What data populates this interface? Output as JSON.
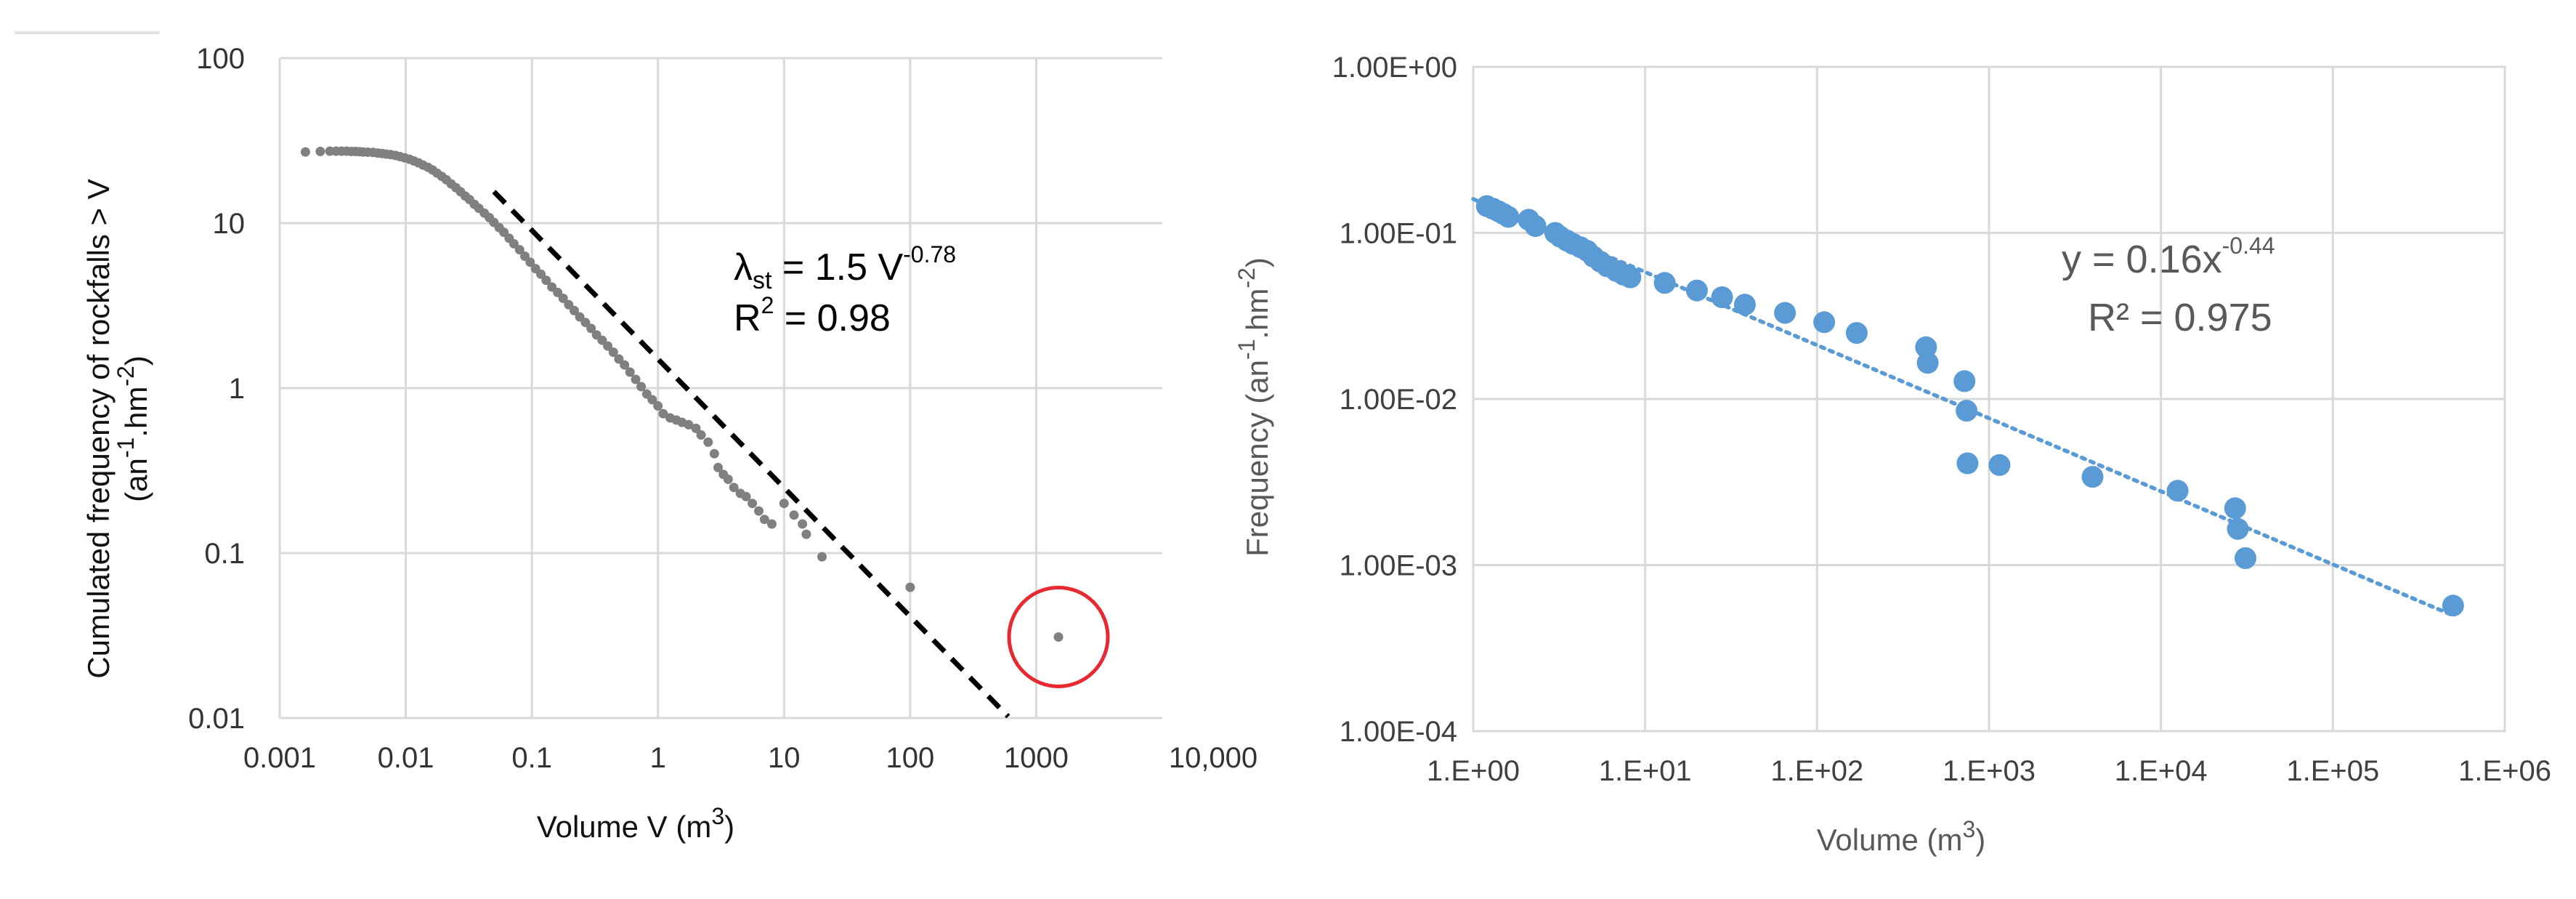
{
  "chart_data": [
    {
      "type": "scatter",
      "title": "",
      "xlabel": "Volume V (m",
      "xlabel_sup": "3",
      "xlabel_end": ")",
      "ylabel_line1": "Cumulated frequency of rockfalls > V",
      "ylabel_line2_pre": "(an",
      "ylabel_line2_sup1": "-1",
      "ylabel_line2_mid": ".hm",
      "ylabel_line2_sup2": "-2",
      "ylabel_line2_end": ")",
      "xscale": "log",
      "yscale": "log",
      "xlim": [
        0.001,
        10000
      ],
      "ylim": [
        0.01,
        100
      ],
      "grid": true,
      "xticks": [
        0.001,
        0.01,
        0.1,
        1,
        10,
        100,
        1000,
        10000
      ],
      "xtick_labels": [
        "0.001",
        "0.01",
        "0.1",
        "1",
        "10",
        "100",
        "1000",
        "10,000"
      ],
      "yticks": [
        0.01,
        0.1,
        1,
        10,
        100
      ],
      "ytick_labels": [
        "0.01",
        "0.1",
        "1",
        "10",
        "100"
      ],
      "equation": {
        "lambda": "λ",
        "sub": "st",
        "mid": " = 1.5 V",
        "sup": "-0.78",
        "r2_pre": "R",
        "r2_sup": "2",
        "r2_post": " = 0.98"
      },
      "fit": {
        "style": "dashed",
        "color": "#000000",
        "a": 1.5,
        "b": -0.78,
        "x_range": [
          0.05,
          600
        ]
      },
      "series_color": "#808080",
      "series": [
        {
          "x": [
            0.0016,
            0.0021,
            0.0025,
            0.0028,
            0.0031,
            0.0034,
            0.0037,
            0.004,
            0.0043,
            0.0046,
            0.005,
            0.0055,
            0.006,
            0.0065,
            0.007,
            0.0076,
            0.0083,
            0.009,
            0.0098,
            0.0107,
            0.0116,
            0.0126,
            0.0137,
            0.015,
            0.0163,
            0.0177,
            0.0193,
            0.021,
            0.0229,
            0.025,
            0.0272,
            0.0296,
            0.032,
            0.035,
            0.038,
            0.042,
            0.046,
            0.05,
            0.055,
            0.06,
            0.066,
            0.072,
            0.08,
            0.088,
            0.097,
            0.107,
            0.118,
            0.13,
            0.144,
            0.16,
            0.177,
            0.196,
            0.217,
            0.24,
            0.266,
            0.295,
            0.326,
            0.361,
            0.4,
            0.443,
            0.49,
            0.543,
            0.6,
            0.665,
            0.736,
            0.815,
            0.9,
            1.0,
            1.1,
            1.25,
            1.4,
            1.55,
            1.75,
            2.0,
            2.2,
            2.5,
            2.8,
            3.0,
            3.3,
            3.6,
            4.0,
            4.5,
            5.0,
            5.6,
            6.3,
            7.0,
            8.0,
            10.0,
            12.0,
            14.0,
            15.0,
            20.0,
            100.0,
            1500.0
          ],
          "y": [
            27.0,
            27.2,
            27.3,
            27.3,
            27.3,
            27.3,
            27.2,
            27.2,
            27.1,
            27.0,
            26.9,
            26.8,
            26.6,
            26.4,
            26.2,
            26.0,
            25.7,
            25.3,
            24.9,
            24.4,
            23.8,
            23.2,
            22.5,
            21.8,
            21.0,
            20.1,
            19.2,
            18.3,
            17.3,
            16.4,
            15.5,
            14.6,
            13.9,
            13.0,
            12.3,
            11.5,
            10.8,
            10.1,
            9.4,
            8.8,
            8.1,
            7.5,
            6.9,
            6.3,
            5.8,
            5.3,
            4.9,
            4.5,
            4.1,
            3.8,
            3.5,
            3.2,
            2.95,
            2.7,
            2.5,
            2.3,
            2.1,
            1.95,
            1.8,
            1.65,
            1.5,
            1.38,
            1.25,
            1.13,
            1.02,
            0.92,
            0.85,
            0.78,
            0.7,
            0.66,
            0.64,
            0.62,
            0.6,
            0.57,
            0.52,
            0.47,
            0.4,
            0.33,
            0.3,
            0.28,
            0.25,
            0.23,
            0.22,
            0.2,
            0.18,
            0.16,
            0.15,
            0.2,
            0.17,
            0.15,
            0.13,
            0.095,
            0.062,
            0.031
          ]
        }
      ],
      "highlight": {
        "shape": "circle",
        "color": "#e8292f",
        "x": 1500,
        "y": 0.031
      }
    },
    {
      "type": "scatter",
      "title": "",
      "xlabel": "Volume (m",
      "xlabel_sup": "3",
      "xlabel_end": ")",
      "ylabel_pre": "Frequency (an",
      "ylabel_sup1": "-1",
      "ylabel_mid": ".hm",
      "ylabel_sup2": "-2",
      "ylabel_end": ")",
      "xscale": "log",
      "yscale": "log",
      "xlim": [
        1,
        1000000
      ],
      "ylim": [
        0.0001,
        1
      ],
      "grid": true,
      "xticks": [
        1,
        10,
        100,
        1000,
        10000,
        100000,
        1000000
      ],
      "xtick_labels": [
        "1.E+00",
        "1.E+01",
        "1.E+02",
        "1.E+03",
        "1.E+04",
        "1.E+05",
        "1.E+06"
      ],
      "yticks": [
        0.0001,
        0.001,
        0.01,
        0.1,
        1
      ],
      "ytick_labels": [
        "1.00E-04",
        "1.00E-03",
        "1.00E-02",
        "1.00E-01",
        "1.00E+00"
      ],
      "equation": {
        "pre": "y = 0.16x",
        "sup": "-0.44",
        "r2_pre": "R",
        "r2_sup": "²",
        "r2_post": " = 0.975"
      },
      "fit": {
        "style": "dotted",
        "color": "#5b9bd5",
        "a": 0.16,
        "b": -0.44,
        "x_range": [
          1,
          500000
        ]
      },
      "series_color": "#5b9bd5",
      "series": [
        {
          "x": [
            1.2,
            1.3,
            1.4,
            1.5,
            1.6,
            2.1,
            2.3,
            3.0,
            3.2,
            3.5,
            3.8,
            4.2,
            4.6,
            5.0,
            5.5,
            6.0,
            6.8,
            7.5,
            8.2,
            13,
            20,
            28,
            38,
            65,
            110,
            170,
            430,
            440,
            720,
            740,
            750,
            1150,
            4000,
            12500,
            27000,
            28000,
            31000,
            500000
          ],
          "y": [
            0.145,
            0.14,
            0.135,
            0.13,
            0.125,
            0.12,
            0.11,
            0.1,
            0.095,
            0.09,
            0.086,
            0.082,
            0.078,
            0.072,
            0.067,
            0.063,
            0.059,
            0.056,
            0.054,
            0.05,
            0.045,
            0.041,
            0.037,
            0.033,
            0.029,
            0.025,
            0.0205,
            0.0165,
            0.0128,
            0.0085,
            0.0041,
            0.004,
            0.0034,
            0.0028,
            0.0022,
            0.00165,
            0.0011,
            0.00057
          ]
        }
      ]
    }
  ]
}
